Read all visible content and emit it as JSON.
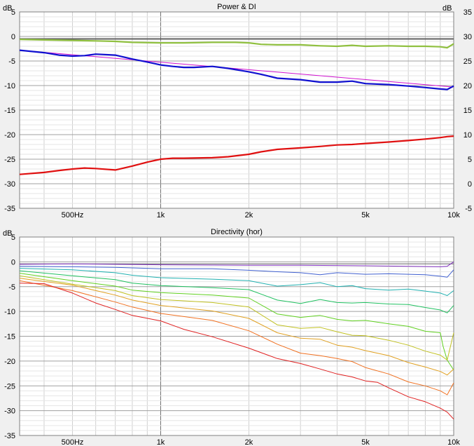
{
  "chart_data": [
    {
      "type": "line",
      "title": "Power & DI",
      "ylabel_left": "dB",
      "ylabel_right": "dB",
      "x_scale": "log",
      "xlim": [
        330,
        10000
      ],
      "ylim_left": [
        -35,
        5
      ],
      "ylim_right": [
        -5,
        35
      ],
      "grid": true,
      "x_ticks": [
        {
          "value": 500,
          "label": "500Hz"
        },
        {
          "value": 1000,
          "label": "1k"
        },
        {
          "value": 2000,
          "label": "2k"
        },
        {
          "value": 5000,
          "label": "5k"
        },
        {
          "value": 10000,
          "label": "10k"
        }
      ],
      "y_ticks_left": [
        5,
        0,
        -5,
        -10,
        -15,
        -20,
        -25,
        -30,
        -35
      ],
      "y_ticks_right": [
        35,
        30,
        25,
        20,
        15,
        10,
        5,
        0,
        -5
      ],
      "series": [
        {
          "color": "#606060",
          "axis": "left",
          "x": [
            330,
            10000
          ],
          "y": [
            -0.5,
            -0.5
          ]
        },
        {
          "color": "#90c040",
          "axis": "left",
          "x": [
            330,
            400,
            500,
            600,
            700,
            800,
            1000,
            1200,
            1500,
            1800,
            2000,
            2200,
            2500,
            3000,
            3500,
            4000,
            4500,
            5000,
            6000,
            7000,
            8000,
            9000,
            9500,
            10000
          ],
          "y": [
            -0.6,
            -0.7,
            -0.8,
            -0.9,
            -1,
            -1.2,
            -1.3,
            -1.3,
            -1.2,
            -1.2,
            -1.3,
            -1.6,
            -1.7,
            -1.7,
            -1.9,
            -2,
            -1.8,
            -2,
            -1.9,
            -2,
            -2,
            -2.1,
            -2.3,
            -1.5
          ]
        },
        {
          "color": "#d010d0",
          "axis": "left",
          "x": [
            330,
            10000
          ],
          "y": [
            -2.8,
            -10.3
          ]
        },
        {
          "color": "#1010d0",
          "axis": "left",
          "x": [
            330,
            400,
            450,
            500,
            550,
            600,
            700,
            800,
            900,
            1000,
            1100,
            1200,
            1300,
            1500,
            1700,
            2000,
            2200,
            2500,
            3000,
            3500,
            4000,
            4500,
            5000,
            6000,
            7000,
            8000,
            9000,
            9500,
            10000
          ],
          "y": [
            -2.8,
            -3.3,
            -3.8,
            -4,
            -3.9,
            -3.6,
            -3.8,
            -4.6,
            -5.2,
            -5.8,
            -6.1,
            -6.3,
            -6.3,
            -6.1,
            -6.5,
            -7.2,
            -7.7,
            -8.5,
            -8.8,
            -9.3,
            -9.3,
            -9.1,
            -9.6,
            -9.8,
            -10.1,
            -10.4,
            -10.7,
            -10.8,
            -10.1
          ]
        },
        {
          "color": "#e01010",
          "axis": "right",
          "x": [
            330,
            400,
            450,
            500,
            550,
            600,
            700,
            800,
            900,
            1000,
            1100,
            1200,
            1500,
            1700,
            2000,
            2200,
            2500,
            3000,
            3500,
            4000,
            4500,
            5000,
            6000,
            7000,
            8000,
            9000,
            9500,
            10000
          ],
          "y": [
            1.9,
            2.3,
            2.7,
            3,
            3.2,
            3.1,
            2.8,
            3.6,
            4.4,
            5,
            5.2,
            5.2,
            5.3,
            5.5,
            6,
            6.5,
            7,
            7.3,
            7.6,
            7.9,
            8,
            8.2,
            8.5,
            8.8,
            9.1,
            9.4,
            9.6,
            9.7
          ]
        }
      ]
    },
    {
      "type": "line",
      "title": "Directivity (hor)",
      "ylabel_left": "dB",
      "x_scale": "log",
      "xlim": [
        330,
        10000
      ],
      "ylim_left": [
        -35,
        5
      ],
      "grid": true,
      "x_ticks": [
        {
          "value": 500,
          "label": "500Hz"
        },
        {
          "value": 1000,
          "label": "1k"
        },
        {
          "value": 2000,
          "label": "2k"
        },
        {
          "value": 5000,
          "label": "5k"
        },
        {
          "value": 10000,
          "label": "10k"
        }
      ],
      "y_ticks_left": [
        5,
        0,
        -5,
        -10,
        -15,
        -20,
        -25,
        -30,
        -35
      ],
      "series": [
        {
          "color": "#606060",
          "axis": "left",
          "x": [
            330,
            10000
          ],
          "y": [
            -0.4,
            -0.4
          ]
        },
        {
          "color": "#8030c0",
          "axis": "left",
          "x": [
            330,
            500,
            1000,
            2000,
            3000,
            5000,
            7000,
            9000,
            9500,
            10000
          ],
          "y": [
            -0.5,
            -0.4,
            -0.6,
            -0.7,
            -0.7,
            -0.8,
            -0.9,
            -1,
            -0.9,
            0
          ]
        },
        {
          "color": "#4060d0",
          "axis": "left",
          "x": [
            330,
            500,
            700,
            1000,
            1500,
            2000,
            2500,
            3000,
            3500,
            4000,
            5000,
            6000,
            7000,
            8000,
            9000,
            9500,
            10000
          ],
          "y": [
            -0.9,
            -1,
            -1.1,
            -1.4,
            -1.4,
            -1.7,
            -2,
            -2.2,
            -2.6,
            -2.2,
            -2.5,
            -2.4,
            -2.5,
            -2.6,
            -2.9,
            -3.1,
            -1.6
          ]
        },
        {
          "color": "#20b0b0",
          "axis": "left",
          "x": [
            330,
            500,
            700,
            800,
            1000,
            1500,
            2000,
            2500,
            3000,
            3500,
            4000,
            4500,
            5000,
            6000,
            7000,
            8000,
            9000,
            9500,
            10000
          ],
          "y": [
            -1.3,
            -1.6,
            -2.2,
            -2.7,
            -3.2,
            -3.5,
            -3.8,
            -4.9,
            -4.6,
            -4.2,
            -5,
            -4.8,
            -5.4,
            -5.7,
            -5.5,
            -5.9,
            -6.3,
            -6.8,
            -5.8
          ]
        },
        {
          "color": "#20c060",
          "axis": "left",
          "x": [
            330,
            500,
            700,
            800,
            1000,
            1500,
            2000,
            2500,
            3000,
            3500,
            4000,
            4500,
            5000,
            6000,
            7000,
            8000,
            9000,
            9500,
            10000
          ],
          "y": [
            -1.8,
            -2.8,
            -3.6,
            -4.3,
            -4.8,
            -5.2,
            -5.6,
            -7.7,
            -8.4,
            -7.6,
            -8.2,
            -8.3,
            -8.2,
            -8.5,
            -8.6,
            -9.2,
            -9.7,
            -10.3,
            -8.8
          ]
        },
        {
          "color": "#60d020",
          "axis": "left",
          "x": [
            330,
            500,
            700,
            800,
            1000,
            1500,
            2000,
            2500,
            3000,
            3500,
            4000,
            4500,
            5000,
            6000,
            7000,
            8000,
            9000,
            9200,
            9500,
            10000
          ],
          "y": [
            -2.3,
            -3.8,
            -4.9,
            -5.7,
            -6.2,
            -6.7,
            -7.3,
            -10.5,
            -11.2,
            -10.8,
            -11.6,
            -11.9,
            -11.8,
            -12.5,
            -13,
            -14,
            -14.3,
            -17,
            -19.8,
            -21.8
          ]
        },
        {
          "color": "#c0c020",
          "axis": "left",
          "x": [
            330,
            500,
            700,
            800,
            1000,
            1500,
            2000,
            2500,
            3000,
            3500,
            4000,
            4500,
            5000,
            6000,
            7000,
            8000,
            9000,
            9500,
            10000
          ],
          "y": [
            -2.8,
            -4.5,
            -5.8,
            -6.8,
            -7.6,
            -8.2,
            -9.1,
            -12.7,
            -13.4,
            -13.2,
            -14.1,
            -14.8,
            -14.9,
            -15.8,
            -16.8,
            -18,
            -18.8,
            -19.8,
            -14.3
          ]
        },
        {
          "color": "#e0a020",
          "axis": "left",
          "x": [
            330,
            500,
            700,
            800,
            1000,
            1500,
            2000,
            2500,
            3000,
            3500,
            4000,
            4500,
            5000,
            6000,
            7000,
            8000,
            9000,
            9500,
            10000
          ],
          "y": [
            -3.3,
            -4.7,
            -6.7,
            -7.7,
            -8.8,
            -9.9,
            -11.4,
            -14.3,
            -15.4,
            -15.6,
            -16.8,
            -17.2,
            -17.9,
            -18.9,
            -20.3,
            -21.2,
            -22.1,
            -22.8,
            -21.6
          ]
        },
        {
          "color": "#f07020",
          "axis": "left",
          "x": [
            330,
            500,
            700,
            800,
            1000,
            1500,
            2000,
            2500,
            3000,
            3500,
            4000,
            4500,
            5000,
            6000,
            7000,
            8000,
            9000,
            9500,
            10000
          ],
          "y": [
            -3.8,
            -5.8,
            -8.1,
            -9.1,
            -10.4,
            -11.8,
            -13.9,
            -16.6,
            -18.4,
            -18.9,
            -19.5,
            -20.1,
            -21.3,
            -22.6,
            -24.2,
            -25,
            -26,
            -26.8,
            -24.4
          ]
        },
        {
          "color": "#e02020",
          "axis": "left",
          "x": [
            330,
            400,
            500,
            600,
            700,
            800,
            1000,
            1200,
            1500,
            2000,
            2500,
            3000,
            3500,
            4000,
            4500,
            5000,
            5500,
            6000,
            7000,
            8000,
            9000,
            9500,
            10000
          ],
          "y": [
            -4.3,
            -4.4,
            -6.3,
            -8.3,
            -9.6,
            -10.8,
            -11.9,
            -13.6,
            -15.1,
            -17.4,
            -19.5,
            -20.5,
            -21.6,
            -22.6,
            -23.2,
            -24,
            -24.3,
            -25.4,
            -27.2,
            -28.2,
            -29.5,
            -30.3,
            -31.7
          ]
        }
      ]
    }
  ]
}
